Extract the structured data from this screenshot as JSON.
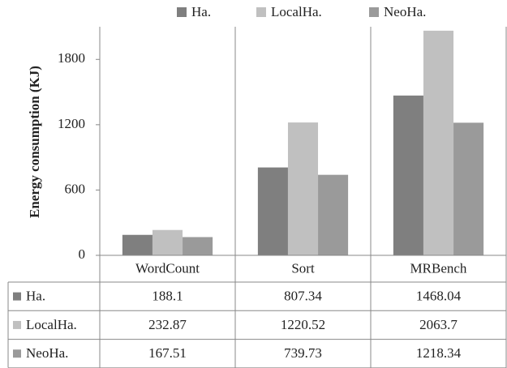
{
  "chart_data": {
    "type": "bar",
    "y_label": "Energy consumption (KJ)",
    "categories": [
      "WordCount",
      "Sort",
      "MRBench"
    ],
    "series": [
      {
        "name": "Ha.",
        "color": "#7f7f7f",
        "values": [
          188.1,
          807.34,
          1468.04
        ]
      },
      {
        "name": "LocalHa.",
        "color": "#c0c0c0",
        "values": [
          232.87,
          1220.52,
          2063.7
        ]
      },
      {
        "name": "NeoHa.",
        "color": "#9a9a9a",
        "values": [
          167.51,
          739.73,
          1218.34
        ]
      }
    ],
    "ylim": [
      0,
      2100
    ],
    "yticks": [
      0,
      600,
      1200,
      1800
    ],
    "legend": "top",
    "data_table": true
  }
}
